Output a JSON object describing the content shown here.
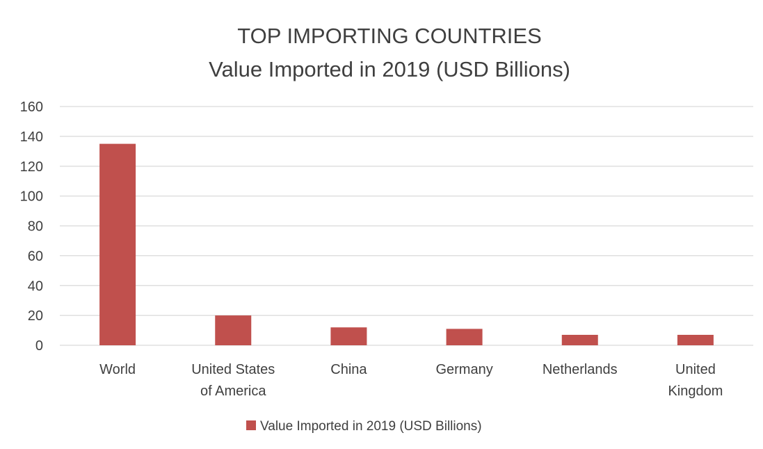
{
  "chart_data": {
    "type": "bar",
    "title": "TOP IMPORTING COUNTRIES",
    "subtitle": "Value Imported in 2019 (USD Billions)",
    "categories": [
      "World",
      "United States of America",
      "China",
      "Germany",
      "Netherlands",
      "United Kingdom"
    ],
    "category_label_lines": [
      [
        "World"
      ],
      [
        "United States",
        "of America"
      ],
      [
        "China"
      ],
      [
        "Germany"
      ],
      [
        "Netherlands"
      ],
      [
        "United",
        "Kingdom"
      ]
    ],
    "series": [
      {
        "name": "Value Imported in 2019 (USD Billions)",
        "values": [
          135,
          20,
          12,
          11,
          7,
          7
        ],
        "color": "#c0504d"
      }
    ],
    "ylim": [
      0,
      160
    ],
    "y_ticks": [
      "0",
      "20",
      "40",
      "60",
      "80",
      "100",
      "120",
      "140",
      "160"
    ],
    "xlabel": "",
    "ylabel": "",
    "grid": true,
    "legend_position": "bottom"
  }
}
